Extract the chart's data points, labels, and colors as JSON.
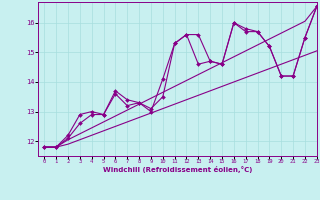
{
  "background_color": "#c8f0f0",
  "grid_color": "#a8dede",
  "line_color": "#880088",
  "xlabel": "Windchill (Refroidissement éolien,°C)",
  "xlim": [
    -0.5,
    23
  ],
  "ylim": [
    11.5,
    16.7
  ],
  "xticks": [
    0,
    1,
    2,
    3,
    4,
    5,
    6,
    7,
    8,
    9,
    10,
    11,
    12,
    13,
    14,
    15,
    16,
    17,
    18,
    19,
    20,
    21,
    22,
    23
  ],
  "yticks": [
    12,
    13,
    14,
    15,
    16
  ],
  "series": [
    {
      "y": [
        11.8,
        11.8,
        12.1,
        12.6,
        12.9,
        12.9,
        13.6,
        13.2,
        13.3,
        13.1,
        13.5,
        15.3,
        15.6,
        15.6,
        14.7,
        14.6,
        16.0,
        15.8,
        15.7,
        15.2,
        14.2,
        14.2,
        15.5,
        16.55
      ],
      "marker": true
    },
    {
      "y": [
        11.8,
        11.8,
        12.2,
        12.9,
        13.0,
        12.9,
        13.7,
        13.4,
        13.3,
        13.0,
        14.1,
        15.3,
        15.6,
        14.6,
        14.7,
        14.6,
        16.0,
        15.7,
        15.7,
        15.2,
        14.2,
        14.2,
        15.5,
        16.55
      ],
      "marker": true
    },
    {
      "y": [
        11.8,
        11.8,
        11.9,
        12.05,
        12.2,
        12.35,
        12.5,
        12.65,
        12.8,
        12.95,
        13.1,
        13.25,
        13.4,
        13.55,
        13.7,
        13.85,
        14.0,
        14.15,
        14.3,
        14.45,
        14.6,
        14.75,
        14.9,
        15.05
      ],
      "marker": false
    },
    {
      "y": [
        11.8,
        11.8,
        12.05,
        12.25,
        12.45,
        12.65,
        12.85,
        13.05,
        13.25,
        13.45,
        13.65,
        13.85,
        14.05,
        14.25,
        14.45,
        14.65,
        14.85,
        15.05,
        15.25,
        15.45,
        15.65,
        15.85,
        16.05,
        16.55
      ],
      "marker": false
    }
  ]
}
